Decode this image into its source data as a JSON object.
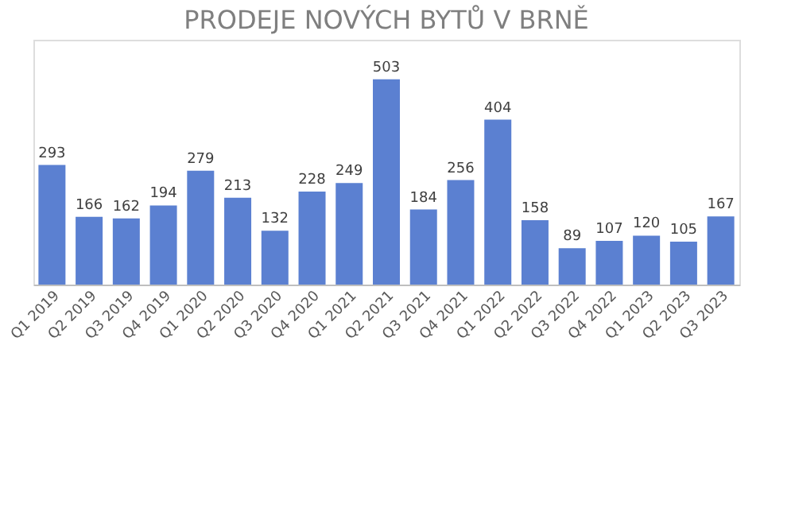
{
  "chart_data": {
    "type": "bar",
    "title": "PRODEJE NOVÝCH BYTŮ V BRNĚ",
    "categories": [
      "Q1 2019",
      "Q2 2019",
      "Q3 2019",
      "Q4 2019",
      "Q1 2020",
      "Q2 2020",
      "Q3 2020",
      "Q4 2020",
      "Q1 2021",
      "Q2 2021",
      "Q3 2021",
      "Q4 2021",
      "Q1 2022",
      "Q2 2022",
      "Q3 2022",
      "Q4 2022",
      "Q1 2023",
      "Q2 2023",
      "Q3 2023"
    ],
    "values": [
      293,
      166,
      162,
      194,
      279,
      213,
      132,
      228,
      249,
      503,
      184,
      256,
      404,
      158,
      89,
      107,
      120,
      105,
      167
    ],
    "color": "#5b80d1",
    "ylim": [
      0,
      600
    ],
    "data_labels": true,
    "grid": false,
    "tick_labels": "x"
  }
}
